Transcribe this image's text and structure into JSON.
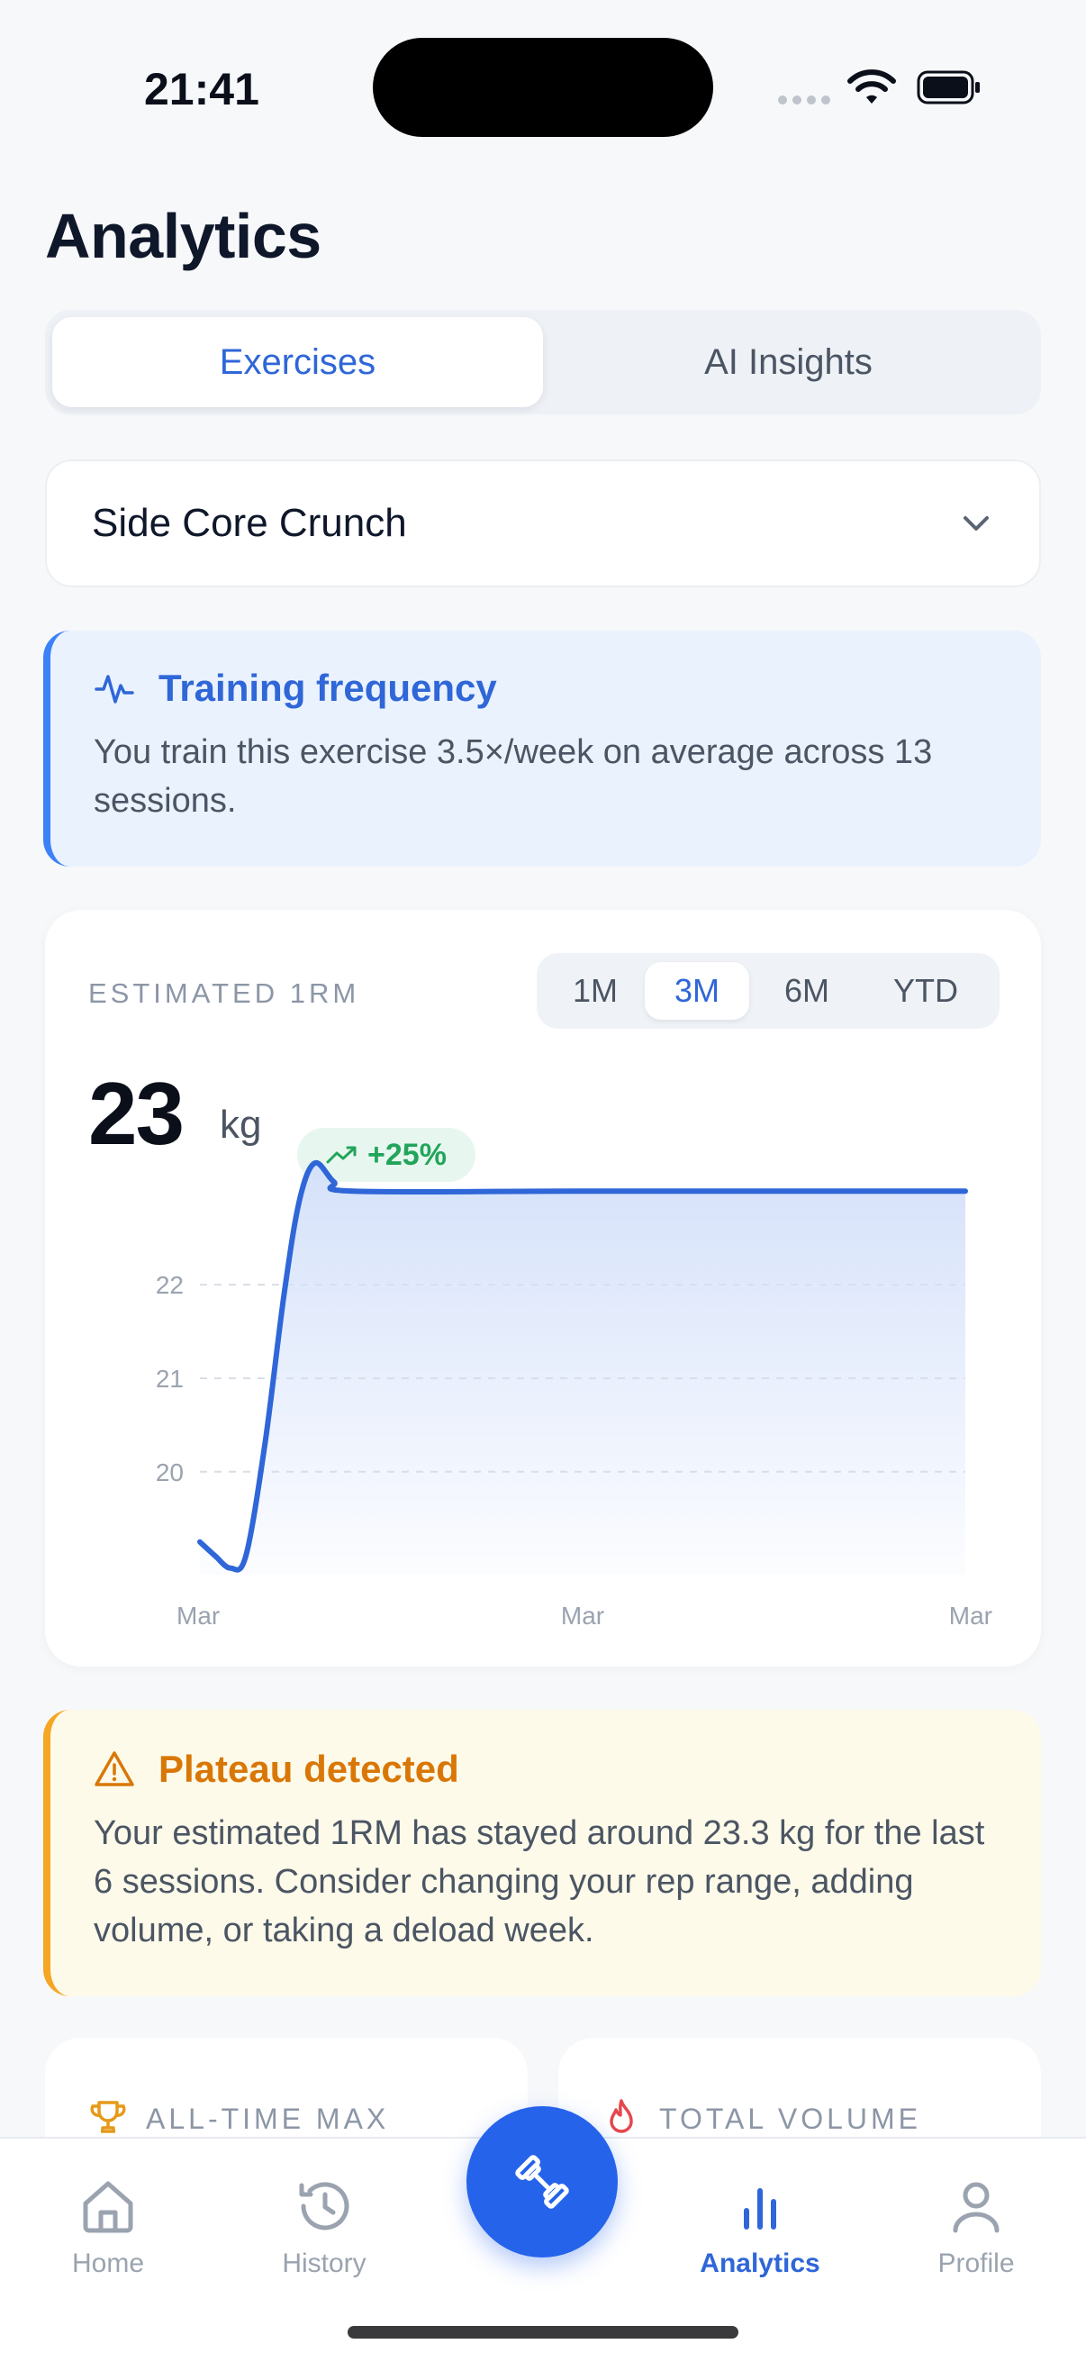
{
  "status_bar": {
    "time": "21:41"
  },
  "page": {
    "title": "Analytics"
  },
  "tabs": [
    {
      "label": "Exercises",
      "active": true
    },
    {
      "label": "AI Insights",
      "active": false
    }
  ],
  "exercise_select": {
    "selected": "Side Core Crunch",
    "icon": "chevron-down-icon"
  },
  "insight": {
    "icon": "activity-icon",
    "title": "Training frequency",
    "body": "You train this exercise 3.5×/week on average across 13 sessions."
  },
  "estimate": {
    "label": "ESTIMATED 1RM",
    "value": "23",
    "unit": "kg",
    "change": "+25%",
    "ranges": [
      {
        "label": "1M",
        "active": false
      },
      {
        "label": "3M",
        "active": true
      },
      {
        "label": "6M",
        "active": false
      },
      {
        "label": "YTD",
        "active": false
      }
    ]
  },
  "chart_data": {
    "type": "area",
    "x_tick_labels": [
      "Mar",
      "Mar",
      "Mar"
    ],
    "y_ticks": [
      20,
      21,
      22
    ],
    "ylim": [
      18.9,
      23.6
    ],
    "points": [
      {
        "x": 0.0,
        "y": 19.25
      },
      {
        "x": 0.02,
        "y": 19.1
      },
      {
        "x": 0.04,
        "y": 18.97
      },
      {
        "x": 0.06,
        "y": 19.1
      },
      {
        "x": 0.085,
        "y": 20.3
      },
      {
        "x": 0.11,
        "y": 21.9
      },
      {
        "x": 0.13,
        "y": 22.9
      },
      {
        "x": 0.15,
        "y": 23.3
      },
      {
        "x": 0.175,
        "y": 23.1
      },
      {
        "x": 0.2,
        "y": 23.0
      },
      {
        "x": 0.5,
        "y": 23.0
      },
      {
        "x": 1.0,
        "y": 23.0
      }
    ],
    "line_color": "#2F66D8",
    "fill_color": "#DCE6FB",
    "grid": "dashed-horizontal"
  },
  "plateau": {
    "icon": "warning-icon",
    "title": "Plateau detected",
    "body": "Your estimated 1RM has stayed around 23.3 kg for the last 6 sessions. Consider changing your rep range, adding volume, or taking a deload week."
  },
  "stats": [
    {
      "label": "ALL-TIME MAX",
      "icon": "trophy-icon",
      "color": "#E59A1A"
    },
    {
      "label": "TOTAL VOLUME",
      "icon": "flame-icon",
      "color": "#E5484D"
    }
  ],
  "nav": {
    "items": [
      {
        "label": "Home",
        "icon": "home-icon",
        "active": false
      },
      {
        "label": "History",
        "icon": "history-icon",
        "active": false
      },
      {
        "label": "Analytics",
        "icon": "bar-chart-icon",
        "active": true
      },
      {
        "label": "Profile",
        "icon": "profile-icon",
        "active": false
      }
    ],
    "fab_icon": "dumbbell-icon"
  },
  "colors": {
    "accent": "#2F66D8",
    "positive": "#22A55B",
    "warning": "#D97706",
    "background": "#F7F8FA"
  }
}
